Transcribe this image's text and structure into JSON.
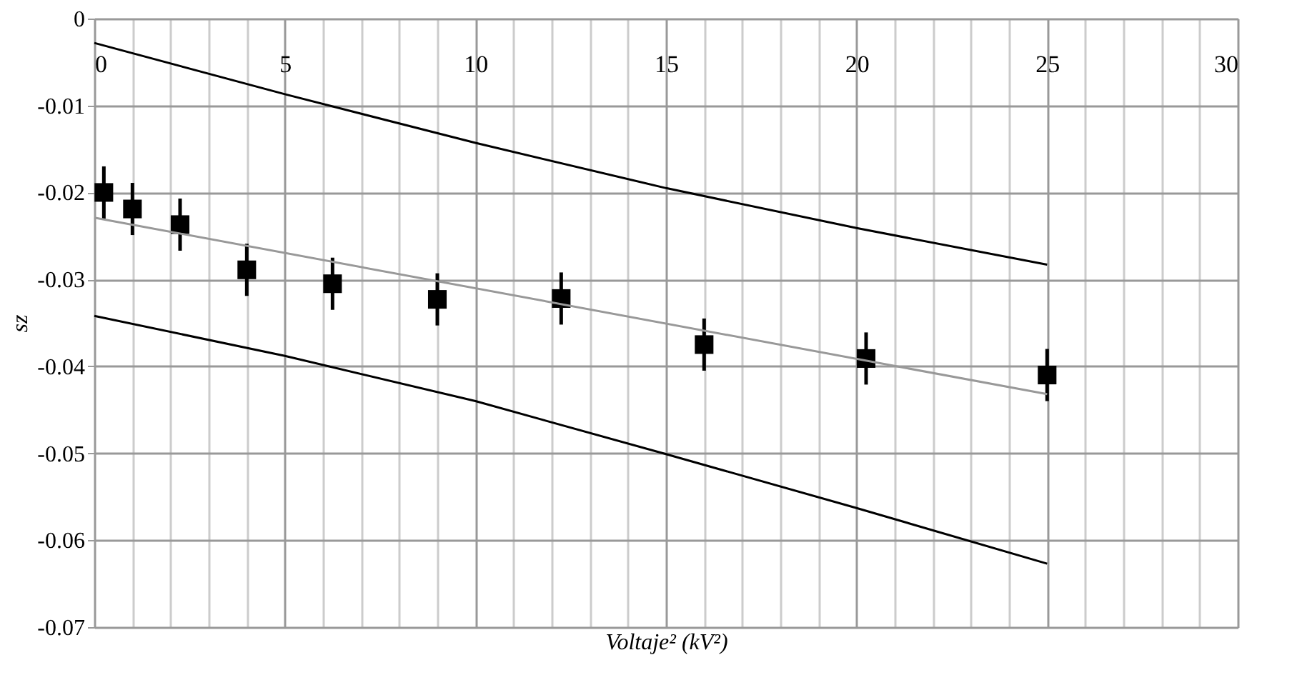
{
  "chart_data": {
    "type": "scatter",
    "xlabel": "Voltaje² (kV²)",
    "ylabel": "sz",
    "xlim": [
      0,
      30
    ],
    "xticks": [
      0,
      {
        "value": 1,
        "label": null
      },
      {
        "value": 2,
        "label": null
      },
      {
        "value": 3,
        "label": null
      },
      {
        "value": 4,
        "label": null
      },
      5,
      {
        "value": 6,
        "label": null
      },
      {
        "value": 7,
        "label": null
      },
      {
        "value": 8,
        "label": null
      },
      {
        "value": 9,
        "label": null
      },
      10,
      {
        "value": 11,
        "label": null
      },
      {
        "value": 12,
        "label": null
      },
      {
        "value": 13,
        "label": null
      },
      {
        "value": 14,
        "label": null
      },
      15,
      {
        "value": 16,
        "label": null
      },
      {
        "value": 17,
        "label": null
      },
      {
        "value": 18,
        "label": null
      },
      {
        "value": 19,
        "label": null
      },
      20,
      {
        "value": 21,
        "label": null
      },
      {
        "value": 22,
        "label": null
      },
      {
        "value": 23,
        "label": null
      },
      {
        "value": 24,
        "label": null
      },
      25,
      {
        "value": 26,
        "label": null
      },
      {
        "value": 27,
        "label": null
      },
      {
        "value": 28,
        "label": null
      },
      {
        "value": 29,
        "label": null
      },
      30
    ],
    "ylim": [
      -0.07,
      0
    ],
    "yticks": [
      0,
      -0.01,
      -0.02,
      -0.03,
      -0.04,
      -0.05,
      -0.06,
      -0.07
    ],
    "grid": true,
    "series": [
      {
        "marker": "square",
        "color": "#000000",
        "x": [
          0.25,
          1,
          2.25,
          4,
          6.25,
          9,
          12.25,
          16,
          20.25,
          25
        ],
        "values": [
          -0.02,
          -0.0219,
          -0.0237,
          -0.0289,
          -0.0305,
          -0.0323,
          -0.0322,
          -0.0375,
          -0.0391,
          -0.041
        ],
        "errors": [
          0.003,
          0.003,
          0.003,
          0.003,
          0.003,
          0.003,
          0.003,
          0.003,
          0.003,
          0.003
        ]
      },
      {
        "type": "line",
        "color": "#000000",
        "x": [
          0,
          5,
          10,
          15,
          20,
          25
        ],
        "values": [
          -0.0028,
          -0.0087,
          -0.0143,
          -0.0195,
          -0.0241,
          -0.0283
        ]
      },
      {
        "type": "line",
        "color": "#999999",
        "x": [
          0,
          25
        ],
        "values": [
          -0.0229,
          -0.0432
        ]
      },
      {
        "type": "line",
        "color": "#000000",
        "x": [
          0,
          5,
          10,
          15,
          20,
          25
        ],
        "values": [
          -0.0342,
          -0.0388,
          -0.044,
          -0.0501,
          -0.0563,
          -0.0627
        ]
      }
    ]
  }
}
